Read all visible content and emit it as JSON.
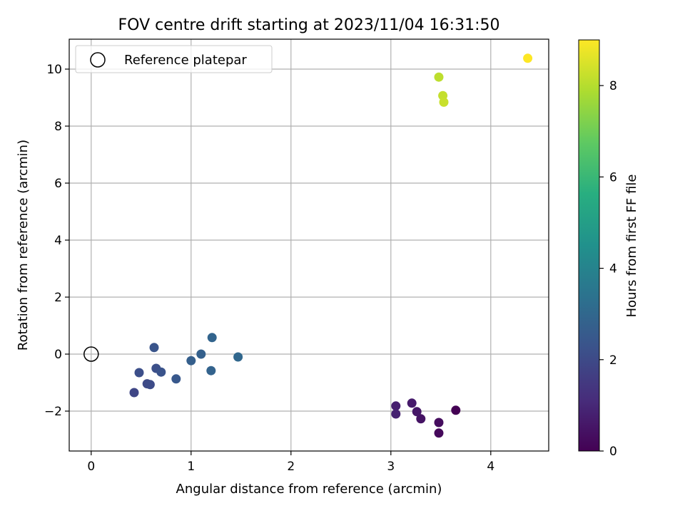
{
  "chart_data": {
    "type": "scatter",
    "title": "FOV centre drift starting at 2023/11/04 16:31:50",
    "xlabel": "Angular distance from reference (arcmin)",
    "ylabel": "Rotation from reference (arcmin)",
    "xlim": [
      -0.22,
      4.58
    ],
    "ylim": [
      -3.4,
      11.05
    ],
    "xticks": [
      0,
      1,
      2,
      3,
      4
    ],
    "yticks": [
      -2,
      0,
      2,
      4,
      6,
      8,
      10
    ],
    "xtick_labels": [
      "0",
      "1",
      "2",
      "3",
      "4"
    ],
    "ytick_labels": [
      "−2",
      "0",
      "2",
      "4",
      "6",
      "8",
      "10"
    ],
    "grid": true,
    "legend": {
      "placement": "top-left",
      "entries": [
        "Reference platepar"
      ]
    },
    "reference_point": {
      "x": 0,
      "y": 0,
      "marker": "open-circle",
      "color": "#000000"
    },
    "colorbar": {
      "label": "Hours from first FF file",
      "colormap": "viridis",
      "range": [
        0,
        9
      ],
      "ticks": [
        0,
        2,
        4,
        6,
        8
      ],
      "tick_labels": [
        "0",
        "2",
        "4",
        "6",
        "8"
      ]
    },
    "points": [
      {
        "x": 3.65,
        "y": -1.97,
        "c": 0.0
      },
      {
        "x": 3.48,
        "y": -2.77,
        "c": 0.2
      },
      {
        "x": 3.48,
        "y": -2.4,
        "c": 0.3
      },
      {
        "x": 3.3,
        "y": -2.27,
        "c": 0.45
      },
      {
        "x": 3.26,
        "y": -2.02,
        "c": 0.55
      },
      {
        "x": 3.21,
        "y": -1.72,
        "c": 0.65
      },
      {
        "x": 3.05,
        "y": -1.82,
        "c": 0.75
      },
      {
        "x": 3.05,
        "y": -2.1,
        "c": 0.85
      },
      {
        "x": 0.43,
        "y": -1.35,
        "c": 1.9
      },
      {
        "x": 0.56,
        "y": -1.04,
        "c": 2.0
      },
      {
        "x": 0.59,
        "y": -1.07,
        "c": 2.05
      },
      {
        "x": 0.48,
        "y": -0.65,
        "c": 2.15
      },
      {
        "x": 0.65,
        "y": -0.5,
        "c": 2.2
      },
      {
        "x": 0.7,
        "y": -0.63,
        "c": 2.3
      },
      {
        "x": 0.63,
        "y": 0.23,
        "c": 2.35
      },
      {
        "x": 0.85,
        "y": -0.87,
        "c": 2.45
      },
      {
        "x": 1.0,
        "y": -0.23,
        "c": 2.7
      },
      {
        "x": 1.1,
        "y": 0.0,
        "c": 2.75
      },
      {
        "x": 1.2,
        "y": -0.58,
        "c": 2.85
      },
      {
        "x": 1.21,
        "y": 0.58,
        "c": 2.9
      },
      {
        "x": 1.47,
        "y": -0.1,
        "c": 3.0
      },
      {
        "x": 3.48,
        "y": 9.72,
        "c": 8.1
      },
      {
        "x": 3.52,
        "y": 9.07,
        "c": 8.2
      },
      {
        "x": 3.53,
        "y": 8.84,
        "c": 8.25
      },
      {
        "x": 4.37,
        "y": 10.38,
        "c": 9.0
      }
    ]
  }
}
